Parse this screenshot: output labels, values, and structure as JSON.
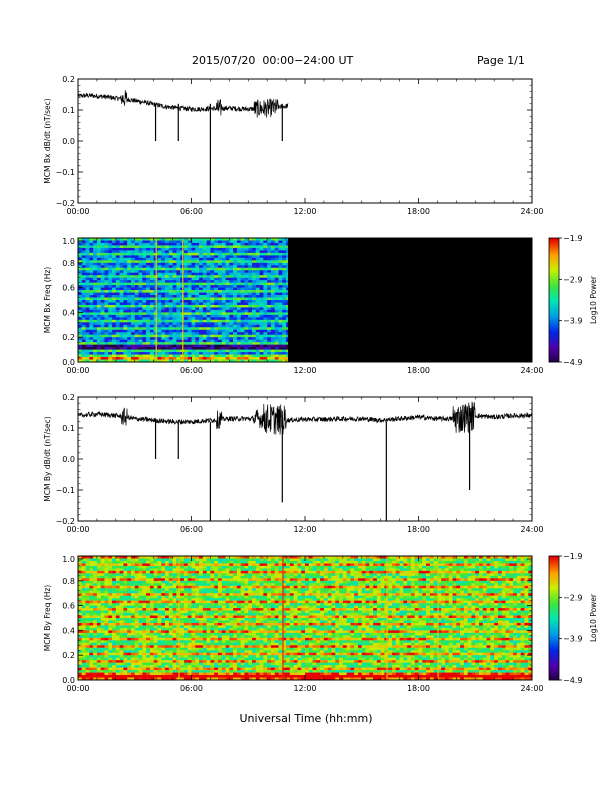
{
  "header": {
    "title": "2015/07/20  00:00−24:00 UT",
    "page": "Page 1/1"
  },
  "footer": {
    "xlabel": "Universal Time (hh:mm)"
  },
  "chart_data": [
    {
      "type": "line",
      "ylabel": "MCM Bx dB/dt (nT/sec)",
      "xlim": [
        0,
        24
      ],
      "ylim": [
        -0.2,
        0.2
      ],
      "xticks": [
        "00:00",
        "06:00",
        "12:00",
        "18:00",
        "24:00"
      ],
      "yticks": [
        "0.2",
        "0.1",
        "0.0",
        "−0.1",
        "−0.2"
      ],
      "x_hours": [
        0,
        0.5,
        1,
        1.5,
        2,
        2.5,
        3,
        3.5,
        4,
        4.5,
        5,
        5.5,
        6,
        6.5,
        7,
        7.5,
        8,
        8.5,
        9,
        9.5,
        10,
        10.5,
        11,
        11.1
      ],
      "y": [
        0.145,
        0.147,
        0.145,
        0.142,
        0.138,
        0.136,
        0.13,
        0.125,
        0.118,
        0.112,
        0.108,
        0.105,
        0.103,
        0.103,
        0.104,
        0.105,
        0.106,
        0.104,
        0.103,
        0.104,
        0.105,
        0.108,
        0.112,
        0.115
      ],
      "spikes": [
        {
          "x": 4.1,
          "y": 0.0
        },
        {
          "x": 5.3,
          "y": 0.0
        },
        {
          "x": 7.0,
          "y": -0.2
        },
        {
          "x": 10.8,
          "y": 0.0
        }
      ],
      "data_end_hour": 11.1
    },
    {
      "type": "heatmap",
      "ylabel": "MCM Bx Freq (Hz)",
      "xlim": [
        0,
        24
      ],
      "ylim": [
        0,
        1.0
      ],
      "xticks": [
        "00:00",
        "06:00",
        "12:00",
        "18:00",
        "24:00"
      ],
      "yticks": [
        "1.0",
        "0.8",
        "0.6",
        "0.4",
        "0.2",
        "0.0"
      ],
      "data_end_hour": 11.1,
      "colorbar": {
        "label": "Log10 Power",
        "ticks": [
          "−1.9",
          "−2.9",
          "−3.9",
          "−4.9"
        ],
        "range": [
          -4.9,
          -1.9
        ]
      },
      "baseline_log_power": -3.9
    },
    {
      "type": "line",
      "ylabel": "MCM By dB/dt (nT/sec)",
      "xlim": [
        0,
        24
      ],
      "ylim": [
        -0.2,
        0.2
      ],
      "xticks": [
        "00:00",
        "06:00",
        "12:00",
        "18:00",
        "24:00"
      ],
      "yticks": [
        "0.2",
        "0.1",
        "0.0",
        "−0.1",
        "−0.2"
      ],
      "x_hours": [
        0,
        1,
        2,
        3,
        4,
        5,
        6,
        7,
        8,
        9,
        10,
        11,
        12,
        13,
        14,
        15,
        16,
        17,
        18,
        19,
        20,
        21,
        22,
        23,
        24
      ],
      "y": [
        0.14,
        0.145,
        0.14,
        0.13,
        0.125,
        0.12,
        0.12,
        0.125,
        0.13,
        0.13,
        0.13,
        0.125,
        0.128,
        0.128,
        0.13,
        0.13,
        0.125,
        0.13,
        0.135,
        0.13,
        0.13,
        0.14,
        0.135,
        0.14,
        0.14
      ],
      "spikes": [
        {
          "x": 4.1,
          "y": 0.0
        },
        {
          "x": 5.3,
          "y": 0.0
        },
        {
          "x": 7.0,
          "y": -0.2
        },
        {
          "x": 10.8,
          "y": -0.14
        },
        {
          "x": 16.3,
          "y": -0.2
        },
        {
          "x": 20.7,
          "y": -0.1
        }
      ],
      "data_end_hour": 24
    },
    {
      "type": "heatmap",
      "ylabel": "MCM By Freq (Hz)",
      "xlim": [
        0,
        24
      ],
      "ylim": [
        0,
        1.0
      ],
      "xticks": [
        "00:00",
        "06:00",
        "12:00",
        "18:00",
        "24:00"
      ],
      "yticks": [
        "1.0",
        "0.8",
        "0.6",
        "0.4",
        "0.2",
        "0.0"
      ],
      "data_end_hour": 24,
      "colorbar": {
        "label": "Log10 Power",
        "ticks": [
          "−1.9",
          "−2.9",
          "−3.9",
          "−4.9"
        ],
        "range": [
          -4.9,
          -1.9
        ]
      },
      "baseline_log_power": -3.0
    }
  ]
}
